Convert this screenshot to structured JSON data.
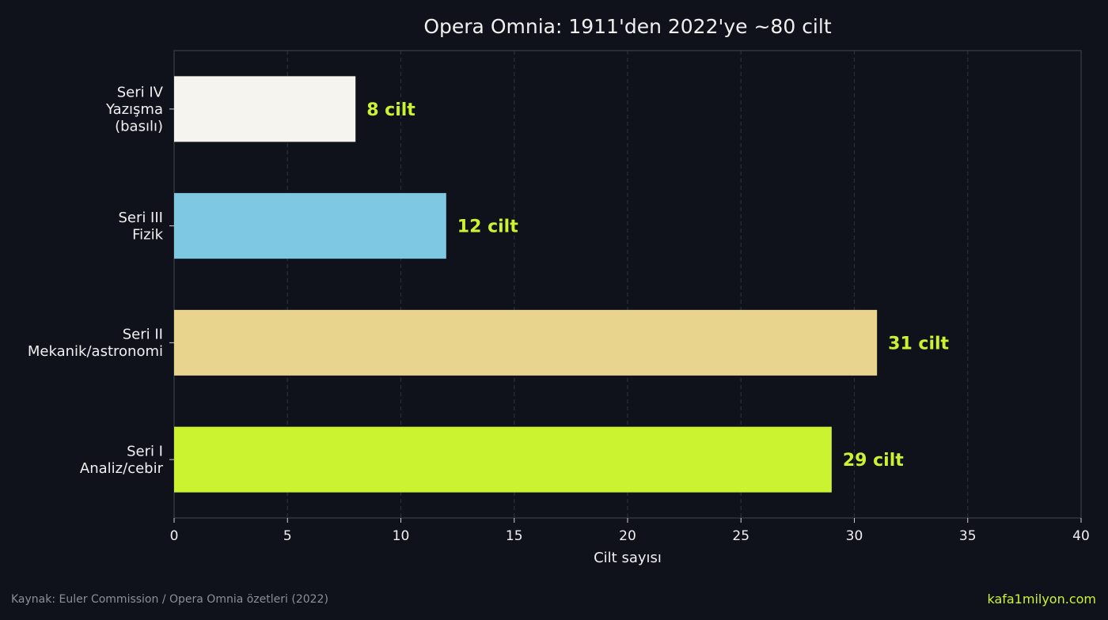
{
  "chart_data": {
    "type": "bar",
    "orientation": "horizontal",
    "title": "Opera Omnia: 1911'den 2022'ye ~80 cilt",
    "xlabel": "Cilt sayısı",
    "ylabel": "",
    "xlim": [
      0,
      40
    ],
    "xticks": [
      "0",
      "5",
      "10",
      "15",
      "20",
      "25",
      "30",
      "35",
      "40"
    ],
    "grid": "vertical dashed",
    "categories": [
      [
        "Seri I",
        "Analiz/cebir"
      ],
      [
        "Seri II",
        "Mekanik/astronomi"
      ],
      [
        "Seri III",
        "Fizik"
      ],
      [
        "Seri IV",
        "Yazışma",
        "(basılı)"
      ]
    ],
    "values": [
      29,
      31,
      12,
      8
    ],
    "data_labels": [
      "29 cilt",
      "31 cilt",
      "12 cilt",
      "8 cilt"
    ],
    "colors": [
      "#ccf32f",
      "#e8d48c",
      "#7ec8e3",
      "#f6f4ee"
    ]
  },
  "footer": {
    "source": "Kaynak: Euler Commission / Opera Omnia özetleri (2022)",
    "brand": "kafa1milyon.com"
  },
  "theme": {
    "background": "#0f121a",
    "label_color": "#ccf32f",
    "text_color": "#f0f0f0",
    "axis_color": "#3a3f4a",
    "grid_color": "#2a2f3a"
  }
}
